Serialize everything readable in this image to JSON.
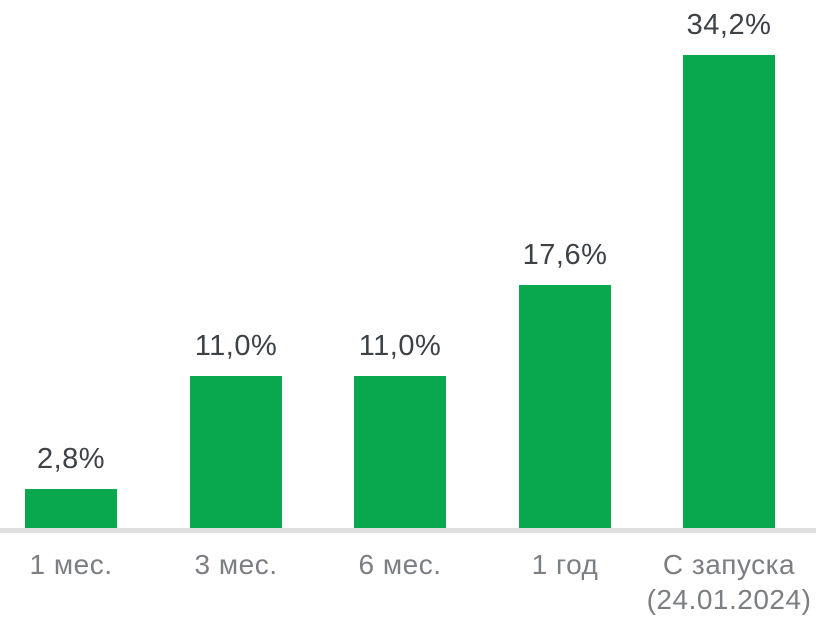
{
  "chart_data": {
    "type": "bar",
    "title": "",
    "xlabel": "",
    "ylabel": "",
    "categories": [
      "1 мес.",
      "3 мес.",
      "6 мес.",
      "1 год",
      "С запуска (24.01.2024)"
    ],
    "values": [
      2.8,
      11.0,
      11.0,
      17.6,
      34.2
    ],
    "value_labels": [
      "2,8%",
      "11,0%",
      "11,0%",
      "17,6%",
      "34,2%"
    ],
    "points": [
      {
        "category_line1": "1 мес.",
        "category_line2": "",
        "value": 2.8,
        "label": "2,8%"
      },
      {
        "category_line1": "3 мес.",
        "category_line2": "",
        "value": 11.0,
        "label": "11,0%"
      },
      {
        "category_line1": "6 мес.",
        "category_line2": "",
        "value": 11.0,
        "label": "11,0%"
      },
      {
        "category_line1": "1 год",
        "category_line2": "",
        "value": 17.6,
        "label": "17,6%"
      },
      {
        "category_line1": "С запуска",
        "category_line2": "(24.01.2024)",
        "value": 34.2,
        "label": "34,2%"
      }
    ],
    "unit": "%",
    "decimal_separator": ",",
    "ylim": [
      0,
      36
    ],
    "grid": false,
    "legend": false,
    "y_axis_visible": false,
    "value_labels_position": "above-bars",
    "colors": {
      "bar": "#09A74E",
      "value_label": "#3D4247",
      "category_label": "#7B7E82",
      "axis_line": "#E0E0E0",
      "background": "#FFFFFF"
    }
  }
}
